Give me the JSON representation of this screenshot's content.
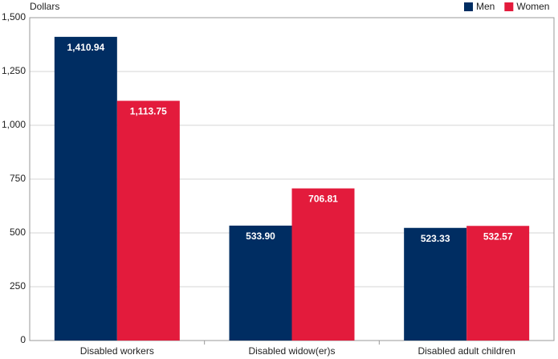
{
  "chart_data": {
    "type": "bar",
    "y_label": "Dollars",
    "categories": [
      "Disabled workers",
      "Disabled widow(er)s",
      "Disabled adult children"
    ],
    "series": [
      {
        "name": "Men",
        "color": "#002d62",
        "values": [
          1410.94,
          533.9,
          523.33
        ],
        "value_labels": [
          "1,410.94",
          "533.90",
          "523.33"
        ]
      },
      {
        "name": "Women",
        "color": "#e31b3c",
        "values": [
          1113.75,
          706.81,
          532.57
        ],
        "value_labels": [
          "1,113.75",
          "706.81",
          "532.57"
        ]
      }
    ],
    "ylim": [
      0,
      1500
    ],
    "yticks": [
      0,
      250,
      500,
      750,
      {
        "value": 1000,
        "label": "1,000"
      },
      {
        "value": 1250,
        "label": "1,250"
      },
      {
        "value": 1500,
        "label": "1,500"
      }
    ],
    "grid": true,
    "legend": "top-right"
  }
}
